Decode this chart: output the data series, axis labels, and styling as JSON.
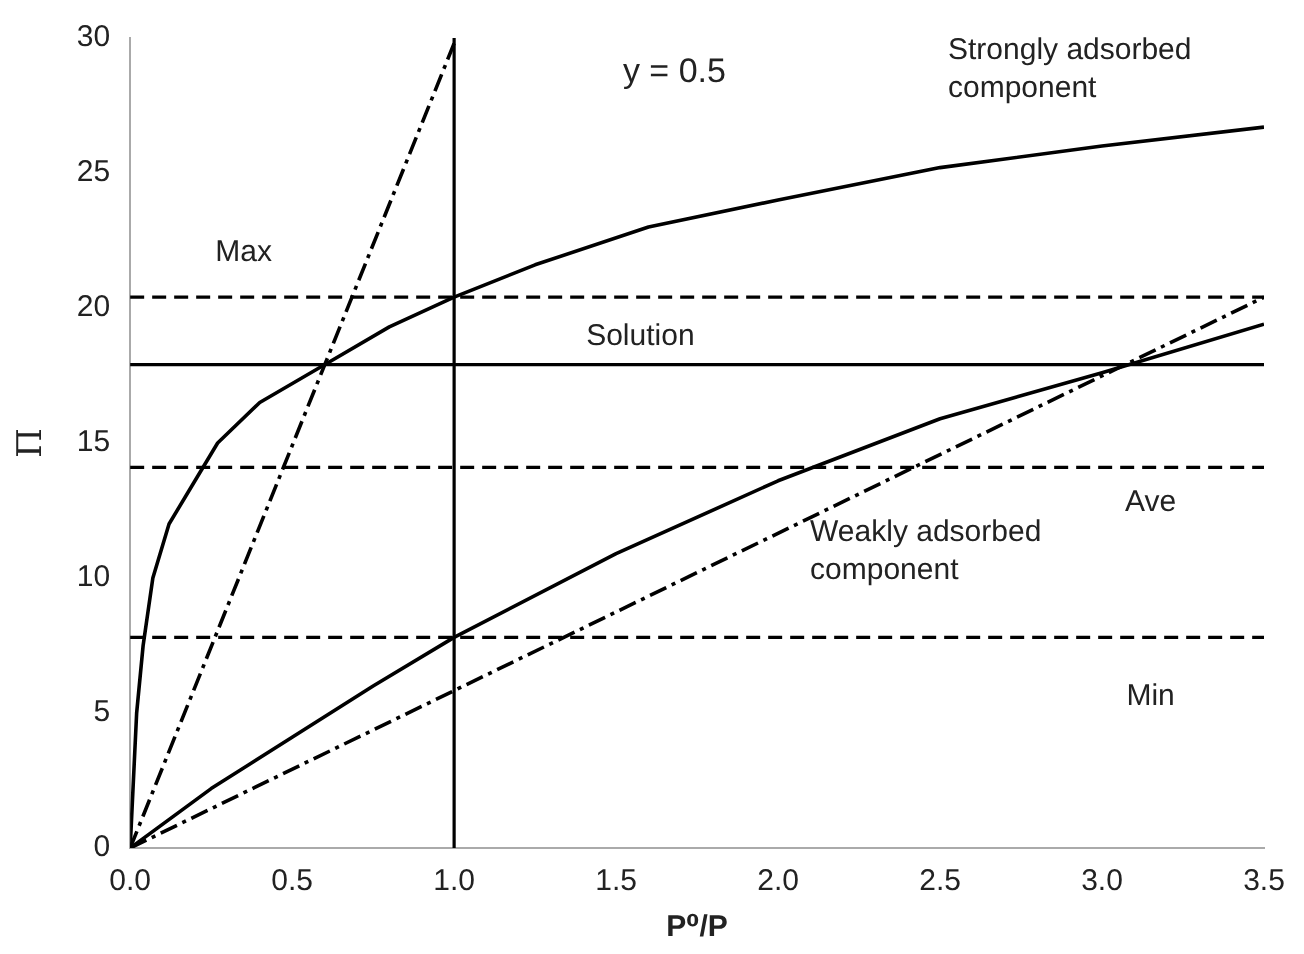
{
  "chart_data": {
    "type": "line",
    "xlabel": "P⁰/P",
    "ylabel": "Π",
    "xlim": [
      0,
      3.5
    ],
    "ylim": [
      0,
      30
    ],
    "xticks": [
      {
        "value": 0,
        "label": "0.0"
      },
      {
        "value": 0.5,
        "label": "0.5"
      },
      {
        "value": 1,
        "label": "1.0"
      },
      {
        "value": 1.5,
        "label": "1.5"
      },
      {
        "value": 2,
        "label": "2.0"
      },
      {
        "value": 2.5,
        "label": "2.5"
      },
      {
        "value": 3,
        "label": "3.0"
      },
      {
        "value": 3.5,
        "label": "3.5"
      }
    ],
    "yticks": [
      0,
      5,
      10,
      15,
      20,
      25,
      30
    ],
    "grid": false,
    "legend": false,
    "marker": "none",
    "annotations": [
      "y = 0.5"
    ],
    "series": [
      {
        "name": "Strongly adsorbed component",
        "color": "#000000",
        "line_style": "solid",
        "x": [
          0,
          0.02,
          0.04,
          0.07,
          0.12,
          0.17,
          0.27,
          0.4,
          0.6,
          0.8,
          1,
          1.25,
          1.6,
          2,
          2.5,
          3,
          3.5
        ],
        "values": [
          0,
          5,
          7.5,
          10,
          12,
          13,
          15,
          16.5,
          17.9,
          19.3,
          20.4,
          21.6,
          23,
          24,
          25.2,
          26,
          26.7
        ]
      },
      {
        "name": "Weakly adsorbed component",
        "color": "#000000",
        "line_style": "solid",
        "x": [
          0,
          0.25,
          0.5,
          0.75,
          1,
          1.5,
          2,
          2.5,
          3,
          3.5
        ],
        "values": [
          0,
          2.2,
          4.1,
          6,
          7.8,
          10.9,
          13.6,
          15.9,
          17.6,
          19.4
        ]
      },
      {
        "color": "#000000",
        "line_style": "dashdot",
        "x": [
          0,
          1
        ],
        "values": [
          0,
          29.8
        ]
      },
      {
        "color": "#000000",
        "line_style": "dashdot",
        "x": [
          0,
          3.5
        ],
        "values": [
          0,
          20.4
        ]
      }
    ],
    "ref_lines": [
      {
        "axis": "y",
        "value": 20.4,
        "label": "Max",
        "color": "#000000",
        "line_style": "dashed"
      },
      {
        "axis": "y",
        "value": 17.9,
        "label": "Solution",
        "color": "#000000",
        "line_style": "solid"
      },
      {
        "axis": "y",
        "value": 14.1,
        "label": "Ave",
        "color": "#000000",
        "line_style": "dashed"
      },
      {
        "axis": "y",
        "value": 7.8,
        "label": "Min",
        "color": "#000000",
        "line_style": "dashed"
      },
      {
        "axis": "x",
        "value": 1,
        "color": "#000000",
        "line_style": "solid"
      }
    ]
  }
}
